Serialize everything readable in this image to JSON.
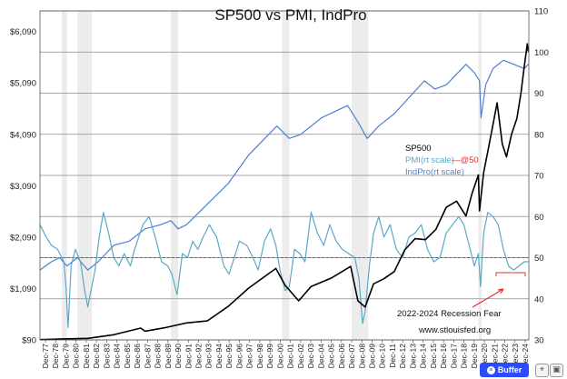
{
  "chart_data": {
    "type": "line",
    "title": "SP500 vs PMI, IndPro",
    "x_ticks": [
      "Dec-77",
      "Dec-78",
      "Dec-79",
      "Dec-80",
      "Dec-81",
      "Dec-82",
      "Dec-83",
      "Dec-84",
      "Dec-85",
      "Dec-86",
      "Dec-87",
      "Dec-88",
      "Dec-89",
      "Dec-90",
      "Dec-91",
      "Dec-92",
      "Dec-93",
      "Dec-94",
      "Dec-95",
      "Dec-96",
      "Dec-97",
      "Dec-98",
      "Dec-99",
      "Dec-00",
      "Dec-01",
      "Dec-02",
      "Dec-03",
      "Dec-04",
      "Dec-05",
      "Dec-06",
      "Dec-07",
      "Dec-08",
      "Dec-09",
      "Dec-10",
      "Dec-11",
      "Dec-12",
      "Dec-13",
      "Dec-14",
      "Dec-15",
      "Dec-16",
      "Dec-17",
      "Dec-18",
      "Dec-19",
      "Dec-20",
      "Dec-21",
      "Dec-22",
      "Dec-23",
      "Dec-24"
    ],
    "left_axis": {
      "ticks": [
        "$90",
        "$1,090",
        "$2,090",
        "$3,090",
        "$4,090",
        "$5,090",
        "$6,090"
      ],
      "min": 90,
      "max": 6490
    },
    "right_axis": {
      "ticks": [
        "30",
        "40",
        "50",
        "60",
        "70",
        "80",
        "90",
        "100",
        "110"
      ],
      "min": 30,
      "max": 110
    },
    "grid": true,
    "legend": {
      "placement": "center-right",
      "entries": [
        {
          "label": "SP500",
          "color": "#000000"
        },
        {
          "label": "PMI(rt scale)",
          "color": "#5aa9c8"
        },
        {
          "label": "—@50",
          "color": "#e03030"
        },
        {
          "label": "IndPro(rt scale)",
          "color": "#4f7fd0"
        }
      ]
    },
    "annotations": [
      "2022-2024 Recession Fear",
      "www.stlouisfed.org"
    ],
    "recession_bands": [
      [
        1980.0,
        1980.5
      ],
      [
        1981.5,
        1982.9
      ],
      [
        1990.5,
        1991.2
      ],
      [
        2001.2,
        2001.9
      ],
      [
        2007.9,
        2009.5
      ],
      [
        2020.1,
        2020.4
      ]
    ],
    "reference_line": {
      "value": 50,
      "axis": "right",
      "color": "#e03030"
    },
    "series": [
      {
        "name": "SP500",
        "axis": "left",
        "color": "#000000",
        "x": [
          1977.9,
          1980,
          1982.5,
          1985,
          1987.6,
          1988,
          1990,
          1992,
          1994,
          1996,
          1998,
          2000.6,
          2001.5,
          2002.8,
          2004,
          2006,
          2007.8,
          2008.5,
          2009.2,
          2010,
          2011,
          2012,
          2013,
          2014,
          2015,
          2016,
          2017,
          2018,
          2018.9,
          2019.5,
          2020.1,
          2020.2,
          2020.6,
          2021,
          2021.9,
          2022.4,
          2022.8,
          2023.3,
          2023.8,
          2024.2,
          2024.5,
          2024.8,
          2024.9
        ],
        "values": [
          95,
          110,
          120,
          190,
          320,
          260,
          330,
          420,
          460,
          740,
          1100,
          1480,
          1150,
          850,
          1130,
          1300,
          1520,
          850,
          730,
          1180,
          1280,
          1420,
          1840,
          2060,
          2040,
          2240,
          2670,
          2790,
          2500,
          2950,
          3300,
          2600,
          3350,
          3750,
          4700,
          3900,
          3650,
          4100,
          4400,
          4900,
          5400,
          5850,
          5700
        ]
      },
      {
        "name": "PMI(rt scale)",
        "axis": "right",
        "color": "#5aa9c8",
        "x": [
          1977.9,
          1978.5,
          1979,
          1979.6,
          1980.2,
          1980.4,
          1980.6,
          1980.9,
          1981.3,
          1981.8,
          1982.2,
          1982.5,
          1983.2,
          1983.6,
          1984,
          1984.5,
          1985,
          1985.5,
          1986,
          1986.6,
          1987,
          1987.8,
          1988.4,
          1989,
          1989.6,
          1990.2,
          1990.6,
          1991.1,
          1991.6,
          1992.1,
          1992.6,
          1993.1,
          1993.6,
          1994.2,
          1994.9,
          1995.6,
          1996.1,
          1996.6,
          1997.1,
          1997.8,
          1998.4,
          1998.9,
          1999.5,
          2000.1,
          2000.6,
          2001,
          2001.5,
          2001.9,
          2002.4,
          2002.9,
          2003.4,
          2004,
          2004.6,
          2005.2,
          2005.8,
          2006.4,
          2007,
          2007.6,
          2008.2,
          2008.6,
          2008.95,
          2009.2,
          2009.6,
          2010,
          2010.5,
          2011,
          2011.6,
          2012.2,
          2012.8,
          2013.4,
          2014,
          2014.6,
          2015.2,
          2015.8,
          2016.4,
          2017,
          2017.6,
          2018.2,
          2018.7,
          2019.2,
          2019.7,
          2020.1,
          2020.3,
          2020.6,
          2021,
          2021.5,
          2022,
          2022.5,
          2023,
          2023.5,
          2024,
          2024.5,
          2024.9
        ],
        "values": [
          58,
          55,
          53,
          52,
          49,
          43,
          33,
          48,
          52,
          49,
          42,
          38,
          47,
          55,
          61,
          56,
          50,
          48,
          51,
          48,
          52,
          58,
          60,
          55,
          49,
          48,
          46,
          41,
          51,
          50,
          54,
          52,
          55,
          58,
          55,
          48,
          46,
          50,
          54,
          53,
          50,
          47,
          54,
          57,
          53,
          47,
          42,
          43,
          52,
          51,
          49,
          61,
          56,
          53,
          58,
          54,
          52,
          51,
          50,
          45,
          34,
          37,
          48,
          56,
          60,
          55,
          58,
          52,
          50,
          55,
          56,
          58,
          52,
          49,
          50,
          56,
          58,
          60,
          58,
          53,
          48,
          51,
          43,
          56,
          61,
          60,
          58,
          52,
          48,
          47,
          48,
          49,
          49
        ]
      },
      {
        "name": "IndPro(rt scale)",
        "axis": "right",
        "color": "#4f7fd0",
        "x": [
          1977.9,
          1979,
          1979.8,
          1980.5,
          1981.5,
          1982.5,
          1983.5,
          1985,
          1986.5,
          1988,
          1989.5,
          1990.5,
          1991.2,
          1992,
          1994,
          1996,
          1998,
          2000.7,
          2001.9,
          2003,
          2005,
          2007.5,
          2008.5,
          2009.4,
          2010.5,
          2012,
          2014.9,
          2015.9,
          2017,
          2018.9,
          2019.7,
          2020.2,
          2020.35,
          2020.8,
          2021.5,
          2022.5,
          2023.5,
          2024.5,
          2024.9
        ],
        "values": [
          47,
          49,
          50,
          48,
          50,
          47,
          49,
          53,
          54,
          57,
          58,
          59,
          57,
          58,
          63,
          68,
          75,
          82,
          79,
          80,
          84,
          87,
          83,
          79,
          82,
          85,
          93,
          91,
          92,
          97,
          95,
          93,
          84,
          92,
          96,
          98,
          97,
          96,
          97
        ]
      }
    ]
  },
  "toolbar": {
    "buffer_label": "Buffer",
    "buffer_icon": "buffer-logo-icon",
    "icon_a": "share-icon",
    "icon_b": "dock-icon"
  }
}
